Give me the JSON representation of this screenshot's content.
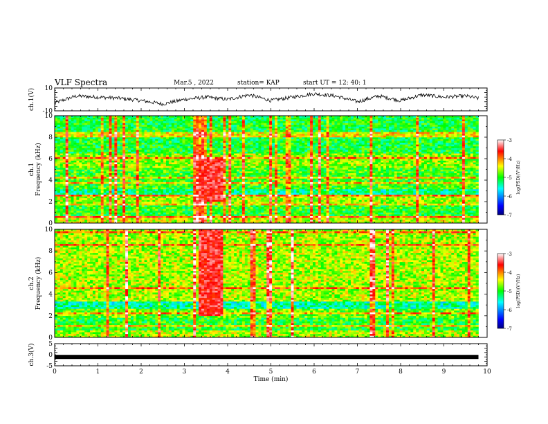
{
  "header": {
    "title": "VLF Spectra",
    "date": "Mar.5 , 2022",
    "station": "station= KAP",
    "start": "start UT = 12: 40: 1"
  },
  "chart_data": [
    {
      "type": "line",
      "panel": "ch1-waveform",
      "ylabel": "ch.1(V)",
      "ylim": [
        -10,
        10
      ],
      "yticks": [
        "10",
        "-10"
      ],
      "x": [
        0,
        0.5,
        1,
        1.5,
        2,
        2.5,
        3,
        3.5,
        4,
        4.5,
        5,
        5.5,
        6,
        6.5,
        7,
        7.5,
        8,
        8.5,
        9,
        9.5,
        9.8
      ],
      "y": [
        -3,
        3,
        2,
        1,
        -1,
        -4,
        0,
        2,
        0,
        4,
        -1,
        2,
        5,
        3,
        -2,
        3,
        -1,
        4,
        2,
        3,
        1
      ]
    },
    {
      "type": "heatmap",
      "panel": "ch1-spectrogram",
      "ylabel": "ch.1 Frequency (kHz)",
      "ylim": [
        0,
        10
      ],
      "yticks": [
        "0",
        "2",
        "4",
        "6",
        "8",
        "10"
      ],
      "xlim": [
        0,
        10
      ],
      "colorbar": {
        "label": "log(PSD)(V²/Hz)",
        "ticks": [
          "-3",
          "-4",
          "-5",
          "-6",
          "-7"
        ],
        "range": [
          -7,
          -3
        ]
      },
      "burst_x_range": [
        3.3,
        3.9
      ],
      "burst_freq_range_khz": [
        2,
        6
      ]
    },
    {
      "type": "heatmap",
      "panel": "ch2-spectrogram",
      "ylabel": "ch.2 Frequency (kHz)",
      "ylim": [
        0,
        10
      ],
      "yticks": [
        "0",
        "2",
        "4",
        "6",
        "8",
        "10"
      ],
      "xlim": [
        0,
        10
      ],
      "colorbar": {
        "label": "log(PSD)(V²/Hz)",
        "ticks": [
          "-3",
          "-4",
          "-5",
          "-6",
          "-7"
        ],
        "range": [
          -7,
          -3
        ]
      },
      "burst_x_range": [
        3.3,
        3.9
      ],
      "burst_freq_range_khz": [
        2,
        10
      ]
    },
    {
      "type": "line",
      "panel": "ch3-waveform",
      "ylabel": "ch.3(V)",
      "ylim": [
        -5,
        5
      ],
      "yticks": [
        "5",
        "0",
        "-5"
      ],
      "x": [
        0,
        9.8
      ],
      "y": [
        -1,
        -1
      ],
      "xlabel": "Time (min)",
      "xticks": [
        "0",
        "1",
        "2",
        "3",
        "4",
        "5",
        "6",
        "7",
        "8",
        "9",
        "10"
      ]
    }
  ]
}
